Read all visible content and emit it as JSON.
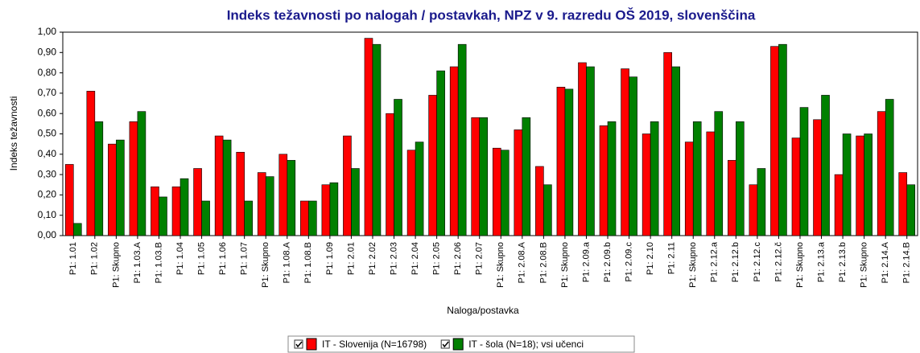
{
  "chart_data": {
    "type": "bar",
    "title": "Indeks težavnosti po nalogah / postavkah, NPZ v 9. razredu OŠ 2019, slovenščina",
    "x_label": "Naloga/postavka",
    "y_label": "Indeks težavnosti",
    "categories": [
      "P1: 1.01",
      "P1: 1.02",
      "P1: Skupno",
      "P1: 1.03.A",
      "P1: 1.03.B",
      "P1: 1.04",
      "P1: 1.05",
      "P1: 1.06",
      "P1: 1.07",
      "P1: Skupno",
      "P1: 1.08.A",
      "P1: 1.08.B",
      "P1: 1.09",
      "P1: 2.01",
      "P1: 2.02",
      "P1: 2.03",
      "P1: 2.04",
      "P1: 2.05",
      "P1: 2.06",
      "P1: 2.07",
      "P1: Skupno",
      "P1: 2.08.A",
      "P1: 2.08.B",
      "P1: Skupno",
      "P1: 2.09.a",
      "P1: 2.09.b",
      "P1: 2.09.c",
      "P1: 2.10",
      "P1: 2.11",
      "P1: Skupno",
      "P1: 2.12.a",
      "P1: 2.12.b",
      "P1: 2.12.c",
      "P1: 2.12.č",
      "P1: Skupno",
      "P1: 2.13.a",
      "P1: 2.13.b",
      "P1: Skupno",
      "P1: 2.14.A",
      "P1: 2.14.B"
    ],
    "series": [
      {
        "name": "IT - Slovenija (N=16798)",
        "color": "#ff0000",
        "values": [
          0.35,
          0.71,
          0.45,
          0.56,
          0.24,
          0.24,
          0.33,
          0.49,
          0.41,
          0.31,
          0.4,
          0.17,
          0.25,
          0.49,
          0.97,
          0.6,
          0.42,
          0.69,
          0.83,
          0.58,
          0.43,
          0.52,
          0.34,
          0.73,
          0.85,
          0.54,
          0.82,
          0.5,
          0.9,
          0.46,
          0.51,
          0.37,
          0.25,
          0.93,
          0.48,
          0.57,
          0.3,
          0.49,
          0.61,
          0.31
        ]
      },
      {
        "name": "IT - šola (N=18); vsi učenci",
        "color": "#008000",
        "values": [
          0.06,
          0.56,
          0.47,
          0.61,
          0.19,
          0.28,
          0.17,
          0.47,
          0.17,
          0.29,
          0.37,
          0.17,
          0.26,
          0.33,
          0.94,
          0.67,
          0.46,
          0.81,
          0.94,
          0.58,
          0.42,
          0.58,
          0.25,
          0.72,
          0.83,
          0.56,
          0.78,
          0.56,
          0.83,
          0.56,
          0.61,
          0.56,
          0.33,
          0.94,
          0.63,
          0.69,
          0.5,
          0.5,
          0.67,
          0.25
        ]
      }
    ],
    "ylim": [
      0,
      1
    ],
    "yticks": [
      {
        "value": 0,
        "label": "0,00"
      },
      {
        "value": 0.1,
        "label": "0,10"
      },
      {
        "value": 0.2,
        "label": "0,20"
      },
      {
        "value": 0.3,
        "label": "0,30"
      },
      {
        "value": 0.4,
        "label": "0,40"
      },
      {
        "value": 0.5,
        "label": "0,50"
      },
      {
        "value": 0.6,
        "label": "0,60"
      },
      {
        "value": 0.7,
        "label": "0,70"
      },
      {
        "value": 0.8,
        "label": "0,80"
      },
      {
        "value": 0.9,
        "label": "0,90"
      },
      {
        "value": 1,
        "label": "1,00"
      }
    ],
    "grid": false
  }
}
